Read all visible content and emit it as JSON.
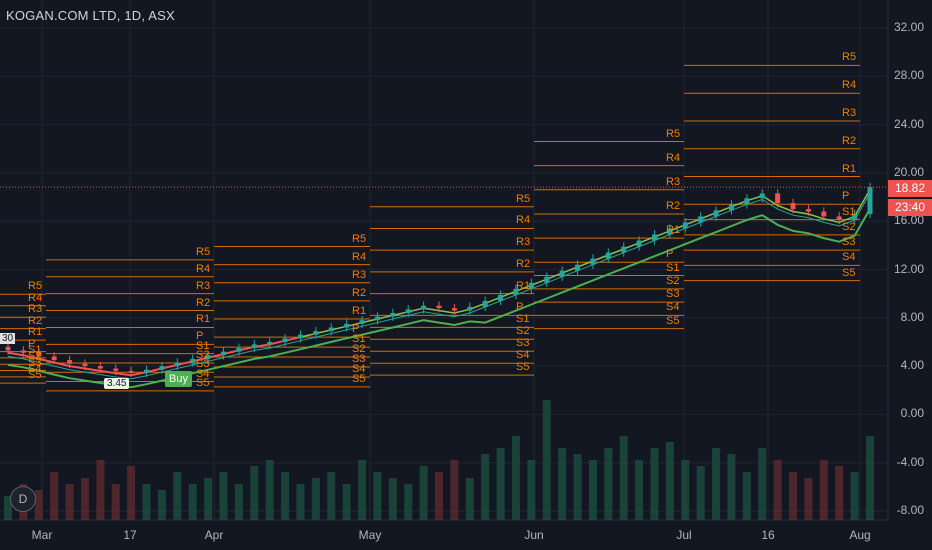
{
  "title": "KOGAN.COM LTD, 1D, ASX",
  "price_axis": [
    "32.00",
    "28.00",
    "24.00",
    "20.00",
    "16.00",
    "12.00",
    "8.00",
    "4.00",
    "0.00",
    "-4.00",
    "-8.00"
  ],
  "price_tag_current": "18.82",
  "price_tag_countdown": "23:40",
  "time_axis": [
    "Mar",
    "17",
    "Apr",
    "May",
    "Jun",
    "Jul",
    "16",
    "Aug"
  ],
  "buy_label": "Buy",
  "low_label": "3.45",
  "left_badge": "30",
  "d_button": "D",
  "colors": {
    "background": "#131722",
    "up": "#26a69a",
    "down": "#ef5350",
    "pivot": "#f57c00",
    "band": "#4caf50",
    "lastline": "#ef5350"
  },
  "pivot_groups": [
    {
      "labels": [
        "R5",
        "R4",
        "R3",
        "R2",
        "R1",
        "P",
        "S1",
        "S2",
        "S3",
        "S4",
        "S5"
      ]
    },
    {
      "labels": [
        "R5",
        "R4",
        "R3",
        "R2",
        "R1",
        "P",
        "S1",
        "S2",
        "S3",
        "S4",
        "S5"
      ]
    },
    {
      "labels": [
        "R5",
        "R4",
        "R3",
        "R2",
        "R1",
        "P",
        "S1",
        "S2",
        "S3",
        "S4",
        "S5"
      ]
    },
    {
      "labels": [
        "R5",
        "R4",
        "R3",
        "R2",
        "R1",
        "P",
        "S1",
        "S2",
        "S3",
        "S4",
        "S5"
      ]
    },
    {
      "labels": [
        "R5",
        "R4",
        "R3",
        "R2",
        "R1",
        "P",
        "S1",
        "S2",
        "S3",
        "S4",
        "S5"
      ]
    },
    {
      "labels": [
        "R5",
        "R4",
        "R3",
        "R2",
        "R1",
        "P",
        "S1",
        "S2",
        "S3",
        "S4",
        "S5"
      ]
    }
  ],
  "chart_data": {
    "type": "candlestick",
    "symbol": "KOGAN.COM LTD",
    "interval": "1D",
    "exchange": "ASX",
    "ylim": [
      -8,
      33
    ],
    "last_price": 18.82,
    "close_path": [
      5.3,
      5.1,
      4.8,
      4.5,
      4.2,
      4.0,
      3.8,
      3.6,
      3.45,
      3.7,
      4.0,
      4.3,
      4.6,
      4.9,
      5.2,
      5.5,
      5.8,
      6.0,
      6.3,
      6.6,
      6.9,
      7.2,
      7.5,
      7.8,
      8.1,
      8.4,
      8.7,
      9.0,
      8.8,
      8.6,
      8.9,
      9.4,
      9.9,
      10.4,
      10.9,
      11.4,
      11.9,
      12.4,
      12.9,
      13.4,
      13.9,
      14.4,
      14.9,
      15.4,
      15.9,
      16.4,
      16.9,
      17.4,
      17.9,
      18.3,
      17.5,
      17.0,
      16.8,
      16.4,
      16.1,
      16.6,
      18.82
    ],
    "volume_relative": [
      0.2,
      0.3,
      0.25,
      0.4,
      0.3,
      0.35,
      0.5,
      0.3,
      0.45,
      0.3,
      0.25,
      0.4,
      0.3,
      0.35,
      0.4,
      0.3,
      0.45,
      0.5,
      0.4,
      0.3,
      0.35,
      0.4,
      0.3,
      0.5,
      0.4,
      0.35,
      0.3,
      0.45,
      0.4,
      0.5,
      0.35,
      0.55,
      0.6,
      0.7,
      0.5,
      1.0,
      0.6,
      0.55,
      0.5,
      0.6,
      0.7,
      0.5,
      0.6,
      0.65,
      0.5,
      0.45,
      0.6,
      0.55,
      0.4,
      0.6,
      0.5,
      0.4,
      0.35,
      0.5,
      0.45,
      0.4,
      0.7
    ]
  }
}
